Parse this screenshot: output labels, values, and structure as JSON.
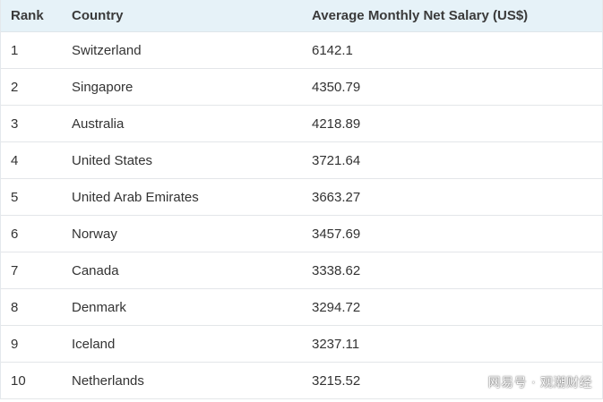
{
  "table": {
    "headers": {
      "rank": "Rank",
      "country": "Country",
      "salary": "Average Monthly Net Salary (US$)"
    },
    "rows": [
      {
        "rank": "1",
        "country": "Switzerland",
        "salary": "6142.1"
      },
      {
        "rank": "2",
        "country": "Singapore",
        "salary": "4350.79"
      },
      {
        "rank": "3",
        "country": "Australia",
        "salary": "4218.89"
      },
      {
        "rank": "4",
        "country": "United States",
        "salary": "3721.64"
      },
      {
        "rank": "5",
        "country": "United Arab Emirates",
        "salary": "3663.27"
      },
      {
        "rank": "6",
        "country": "Norway",
        "salary": "3457.69"
      },
      {
        "rank": "7",
        "country": "Canada",
        "salary": "3338.62"
      },
      {
        "rank": "8",
        "country": "Denmark",
        "salary": "3294.72"
      },
      {
        "rank": "9",
        "country": "Iceland",
        "salary": "3237.11"
      },
      {
        "rank": "10",
        "country": "Netherlands",
        "salary": "3215.52"
      }
    ]
  },
  "watermark": "网易号 · 观潮财经",
  "colors": {
    "header_bg": "#e6f2f8",
    "row_border": "#e3e6e9",
    "text": "#333333"
  }
}
